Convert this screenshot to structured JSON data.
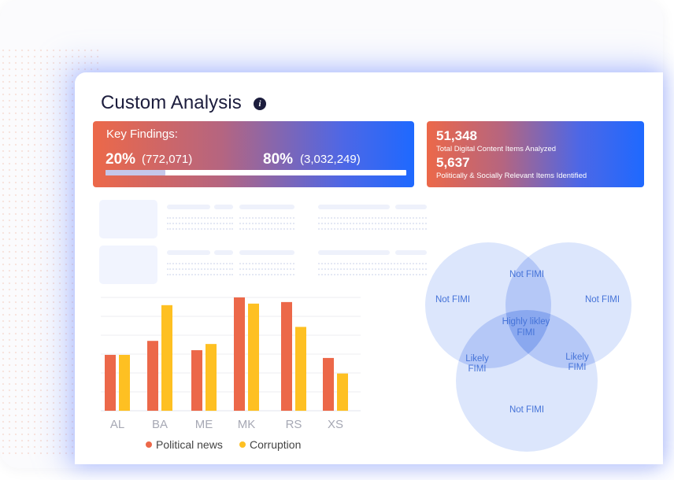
{
  "title": "Custom Analysis",
  "info_icon": "info-icon",
  "key_findings": {
    "label": "Key Findings:",
    "left_pct": "20%",
    "left_count": "(772,071)",
    "right_pct": "80%",
    "right_count": "(3,032,249)",
    "progress": 0.2
  },
  "stats": {
    "total_value": "51,348",
    "total_label": "Total Digital Content Items Analyzed",
    "relevant_value": "5,637",
    "relevant_label": "Politically & Socially Relevant Items Identified"
  },
  "chart_data": {
    "type": "bar",
    "categories": [
      "AL",
      "BA",
      "ME",
      "MK",
      "RS",
      "XS"
    ],
    "series": [
      {
        "name": "Political news",
        "color": "#ec6849",
        "values": [
          36,
          45,
          39,
          73,
          70,
          34
        ]
      },
      {
        "name": "Corruption",
        "color": "#fec022",
        "values": [
          36,
          68,
          43,
          69,
          54,
          24
        ]
      }
    ],
    "ylim": [
      0,
      75
    ],
    "grid": true,
    "legend": "bottom"
  },
  "venn": {
    "colors": [
      "#dce6fc",
      "#b5c8f7",
      "#8aa8ef"
    ],
    "text_color": "#4573d8",
    "labels": {
      "top_left": "Not FIMI",
      "top_right": "Not FIMI",
      "top_pair": "Not FIMI",
      "center": [
        "Highly likley",
        "FIMI"
      ],
      "left_pair": [
        "Likely",
        "FIMI"
      ],
      "right_pair": [
        "Likely",
        "FIMI"
      ],
      "bottom": "Not FIMI"
    }
  }
}
